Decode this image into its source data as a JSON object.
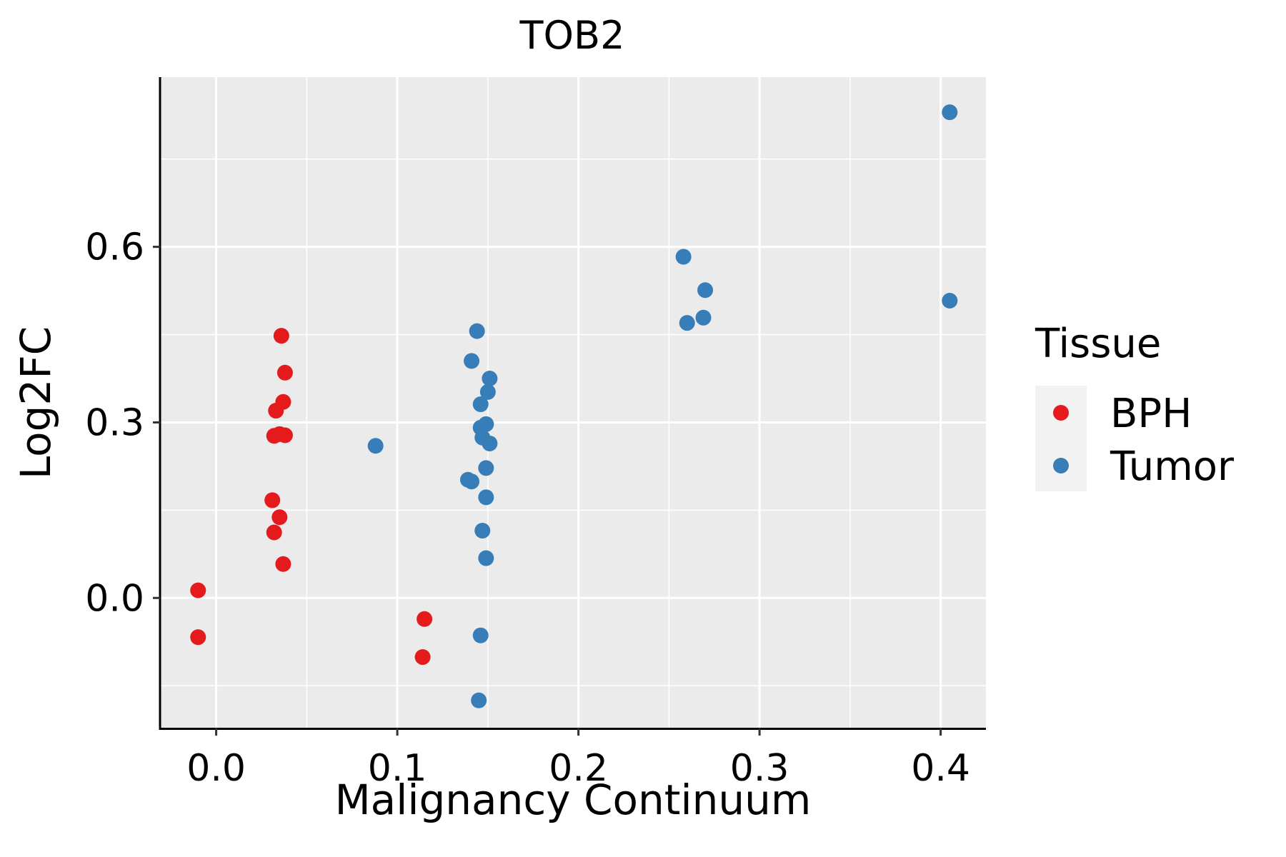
{
  "chart_data": {
    "type": "scatter",
    "title": "TOB2",
    "xlabel": "Malignancy Continuum",
    "ylabel": "Log2FC",
    "xlim": [
      -0.031,
      0.425
    ],
    "ylim": [
      -0.223,
      0.89
    ],
    "x_ticks": [
      {
        "value": 0.0,
        "label": "0.0"
      },
      {
        "value": 0.1,
        "label": "0.1"
      },
      {
        "value": 0.2,
        "label": "0.2"
      },
      {
        "value": 0.3,
        "label": "0.3"
      },
      {
        "value": 0.4,
        "label": "0.4"
      }
    ],
    "y_ticks": [
      {
        "value": 0.0,
        "label": "0.0"
      },
      {
        "value": 0.3,
        "label": "0.3"
      },
      {
        "value": 0.6,
        "label": "0.6"
      }
    ],
    "x_minor": [
      0.05,
      0.15,
      0.25,
      0.35
    ],
    "y_minor": [
      -0.15,
      0.15,
      0.45,
      0.75
    ],
    "grid": true,
    "panel_color": "#EBEBEB",
    "legend": {
      "title": "Tissue",
      "position": "right"
    },
    "series": [
      {
        "name": "BPH",
        "color": "#E41A1C",
        "points": [
          {
            "x": -0.01,
            "y": 0.013
          },
          {
            "x": -0.01,
            "y": -0.067
          },
          {
            "x": 0.036,
            "y": 0.448
          },
          {
            "x": 0.038,
            "y": 0.385
          },
          {
            "x": 0.037,
            "y": 0.335
          },
          {
            "x": 0.033,
            "y": 0.32
          },
          {
            "x": 0.032,
            "y": 0.277
          },
          {
            "x": 0.035,
            "y": 0.28
          },
          {
            "x": 0.038,
            "y": 0.278
          },
          {
            "x": 0.031,
            "y": 0.167
          },
          {
            "x": 0.035,
            "y": 0.138
          },
          {
            "x": 0.032,
            "y": 0.112
          },
          {
            "x": 0.037,
            "y": 0.058
          },
          {
            "x": 0.115,
            "y": -0.036
          },
          {
            "x": 0.114,
            "y": -0.101
          }
        ]
      },
      {
        "name": "Tumor",
        "color": "#377EB8",
        "points": [
          {
            "x": 0.088,
            "y": 0.26
          },
          {
            "x": 0.144,
            "y": 0.456
          },
          {
            "x": 0.141,
            "y": 0.405
          },
          {
            "x": 0.151,
            "y": 0.375
          },
          {
            "x": 0.15,
            "y": 0.352
          },
          {
            "x": 0.146,
            "y": 0.331
          },
          {
            "x": 0.149,
            "y": 0.297
          },
          {
            "x": 0.146,
            "y": 0.291
          },
          {
            "x": 0.147,
            "y": 0.274
          },
          {
            "x": 0.151,
            "y": 0.264
          },
          {
            "x": 0.149,
            "y": 0.222
          },
          {
            "x": 0.139,
            "y": 0.202
          },
          {
            "x": 0.141,
            "y": 0.199
          },
          {
            "x": 0.149,
            "y": 0.172
          },
          {
            "x": 0.147,
            "y": 0.115
          },
          {
            "x": 0.149,
            "y": 0.068
          },
          {
            "x": 0.146,
            "y": -0.064
          },
          {
            "x": 0.145,
            "y": -0.175
          },
          {
            "x": 0.258,
            "y": 0.583
          },
          {
            "x": 0.27,
            "y": 0.526
          },
          {
            "x": 0.269,
            "y": 0.479
          },
          {
            "x": 0.26,
            "y": 0.47
          },
          {
            "x": 0.405,
            "y": 0.83
          },
          {
            "x": 0.405,
            "y": 0.508
          }
        ]
      }
    ]
  }
}
